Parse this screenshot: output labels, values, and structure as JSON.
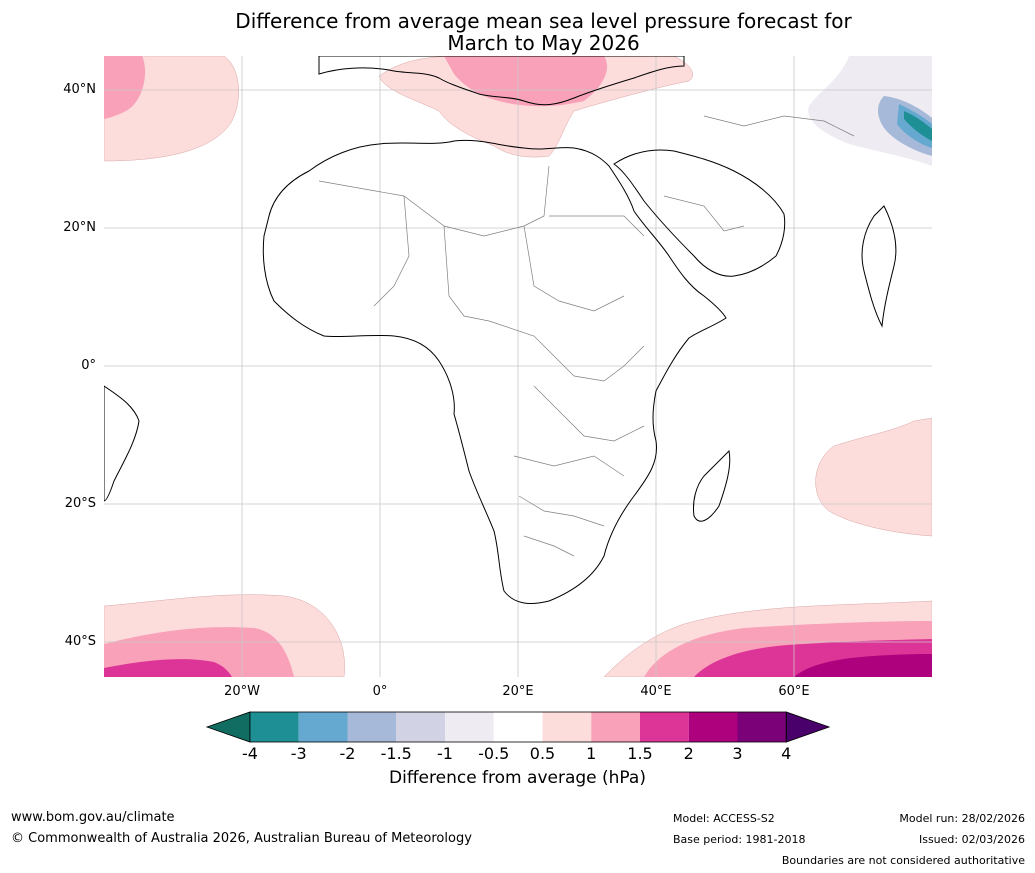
{
  "title": {
    "line1": "Difference from average mean sea level pressure forecast for",
    "line2": "March to May 2026"
  },
  "axes": {
    "lat_labels": [
      "40°N",
      "20°N",
      "0°",
      "20°S",
      "40°S"
    ],
    "lon_labels": [
      "20°W",
      "0°",
      "20°E",
      "40°E",
      "60°E"
    ]
  },
  "legend": {
    "ticks": [
      "-4",
      "-3",
      "-2",
      "-1.5",
      "-1",
      "-0.5",
      "0.5",
      "1",
      "1.5",
      "2",
      "3",
      "4"
    ],
    "colors": [
      "#116d61",
      "#1f8f96",
      "#65a8d0",
      "#a6b9d8",
      "#d1d2e4",
      "#eeebf2",
      "#ffffff",
      "#fddcdc",
      "#f8a1b9",
      "#dd3497",
      "#ae017e",
      "#7a0177",
      "#49006a"
    ],
    "label": "Difference from average (hPa)"
  },
  "footer": {
    "website": "www.bom.gov.au/climate",
    "copyright": "© Commonwealth of Australia 2026, Australian Bureau of Meteorology",
    "model": "Model: ACCESS-S2",
    "base_period": "Base period: 1981-2018",
    "model_run": "Model run: 28/02/2026",
    "issued": "Issued: 02/03/2026",
    "disclaimer": "Boundaries are not considered authoritative"
  }
}
